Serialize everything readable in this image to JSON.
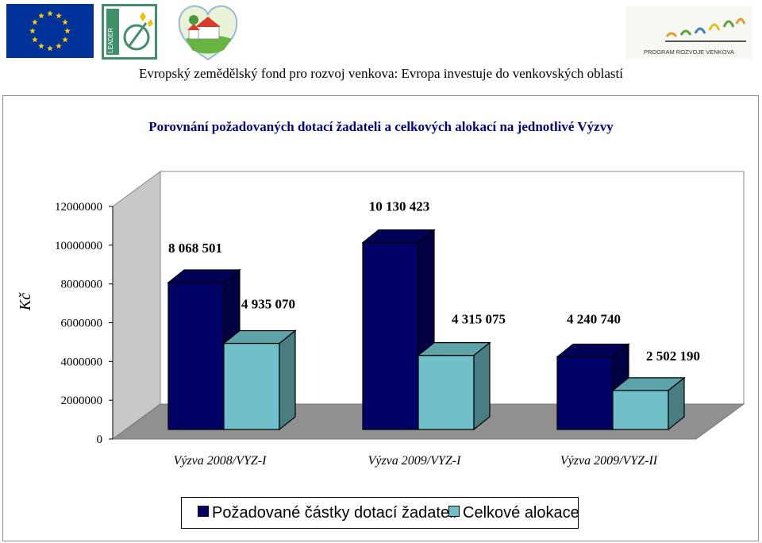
{
  "header": {
    "text": "Evropský zemědělský fond pro rozvoj venkova: Evropa investuje do venkovských oblastí",
    "logos": [
      "eu-flag-icon",
      "leader-logo-icon",
      "village-heart-logo-icon",
      "program-rozvoje-venkova-logo-icon"
    ],
    "leader_logo_text": "LEADER",
    "prv_logo_text": "PROGRAM ROZVOJE VENKOVA"
  },
  "chart_data": {
    "type": "bar",
    "title": "Porovnání požadovaných dotací žadateli  a celkových alokací na jednotlivé Výzvy",
    "xlabel": "",
    "ylabel": "Kč",
    "ylim": [
      0,
      12000000
    ],
    "yticks": [
      0,
      2000000,
      4000000,
      6000000,
      8000000,
      10000000,
      12000000
    ],
    "ytick_labels": [
      "0",
      "2000000",
      "4000000",
      "6000000",
      "8000000",
      "10000000",
      "12000000"
    ],
    "categories": [
      "Výzva 2008/VYZ-I",
      "Výzva 2009/VYZ-I",
      "Výzva 2009/VYZ-II"
    ],
    "series": [
      {
        "name": "Požadované částky dotací žadateli",
        "values": [
          8068501,
          10130423,
          4240740
        ],
        "labels": [
          "8 068 501",
          "10 130 423",
          "4 240 740"
        ],
        "color": "#000066"
      },
      {
        "name": "Celkové alokace",
        "values": [
          4935070,
          4315075,
          2502190
        ],
        "labels": [
          "4 935 070",
          "4 315 075",
          "2 502 190"
        ],
        "color": "#6FC0C8"
      }
    ],
    "grid": false,
    "legend": "bottom",
    "style": "3d-clustered-column"
  }
}
